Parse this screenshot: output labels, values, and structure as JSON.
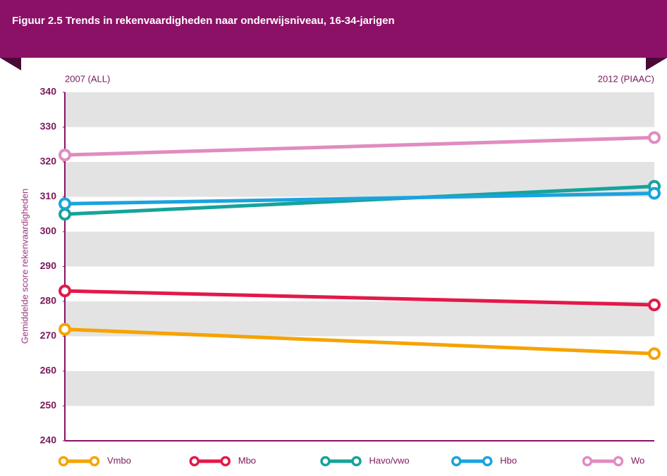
{
  "chart_data": {
    "type": "line",
    "title": "Figuur 2.5 Trends in rekenvaardigheden naar onderwijsniveau, 16-34-jarigen",
    "ylabel": "Gemiddelde score rekenvaardigheden",
    "categories": [
      "2007 (ALL)",
      "2012 (PIAAC)"
    ],
    "series": [
      {
        "name": "Vmbo",
        "color": "#f5a300",
        "values": [
          272,
          265
        ]
      },
      {
        "name": "Mbo",
        "color": "#e2194a",
        "values": [
          283,
          279
        ]
      },
      {
        "name": "Havo/vwo",
        "color": "#16a39a",
        "values": [
          305,
          313
        ]
      },
      {
        "name": "Hbo",
        "color": "#1aa3de",
        "values": [
          308,
          311
        ]
      },
      {
        "name": "Wo",
        "color": "#e08cc0",
        "values": [
          322,
          327
        ]
      }
    ],
    "ylim": [
      240,
      340
    ],
    "yticks": [
      240,
      250,
      260,
      270,
      280,
      290,
      300,
      310,
      320,
      330,
      340
    ],
    "grid": true,
    "legend": "bottom"
  }
}
